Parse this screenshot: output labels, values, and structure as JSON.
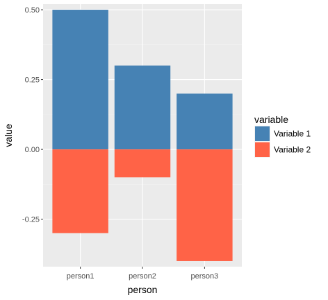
{
  "chart_data": {
    "type": "bar",
    "stacked": true,
    "categories": [
      "person1",
      "person2",
      "person3"
    ],
    "series": [
      {
        "name": "Variable 1",
        "values": [
          0.5,
          0.3,
          0.2
        ],
        "color": "#4682B4"
      },
      {
        "name": "Variable 2",
        "values": [
          -0.3,
          -0.1,
          -0.4
        ],
        "color": "#FF6347"
      }
    ],
    "xlabel": "person",
    "ylabel": "value",
    "ylim": [
      -0.42,
      0.52
    ],
    "yticks": [
      -0.25,
      0.0,
      0.25,
      0.5
    ],
    "ytick_labels": [
      "-0.25",
      "0.00",
      "0.25",
      "0.50"
    ],
    "grid": true,
    "legend": {
      "title": "variable",
      "placement": "right"
    },
    "colors": {
      "panel_background": "#EBEBEB",
      "grid_major": "#FFFFFF",
      "grid_minor": "#F5F5F5",
      "tick_text": "#4D4D4D"
    }
  }
}
